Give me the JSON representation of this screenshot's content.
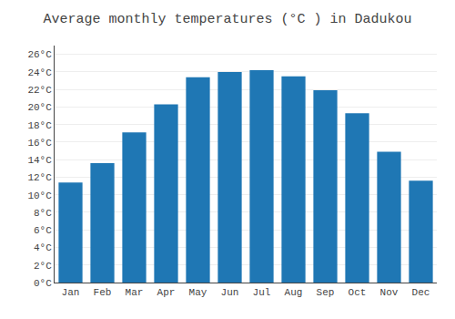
{
  "chart_data": {
    "type": "bar",
    "title": "Average monthly temperatures (°C ) in Dadukou",
    "categories": [
      "Jan",
      "Feb",
      "Mar",
      "Apr",
      "May",
      "Jun",
      "Jul",
      "Aug",
      "Sep",
      "Oct",
      "Nov",
      "Dec"
    ],
    "values": [
      11.4,
      13.6,
      17.1,
      20.3,
      23.4,
      24.0,
      24.2,
      23.5,
      21.9,
      19.3,
      14.9,
      11.6
    ],
    "ylim": [
      0,
      27
    ],
    "yticks": [
      {
        "value": 0,
        "label": "0°C"
      },
      {
        "value": 2,
        "label": "2°C"
      },
      {
        "value": 4,
        "label": "4°C"
      },
      {
        "value": 6,
        "label": "6°C"
      },
      {
        "value": 8,
        "label": "8°C"
      },
      {
        "value": 10,
        "label": "10°C"
      },
      {
        "value": 12,
        "label": "12°C"
      },
      {
        "value": 14,
        "label": "14°C"
      },
      {
        "value": 16,
        "label": "16°C"
      },
      {
        "value": 18,
        "label": "18°C"
      },
      {
        "value": 20,
        "label": "20°C"
      },
      {
        "value": 22,
        "label": "22°C"
      },
      {
        "value": 24,
        "label": "24°C"
      },
      {
        "value": 26,
        "label": "26°C"
      }
    ],
    "grid": true
  }
}
